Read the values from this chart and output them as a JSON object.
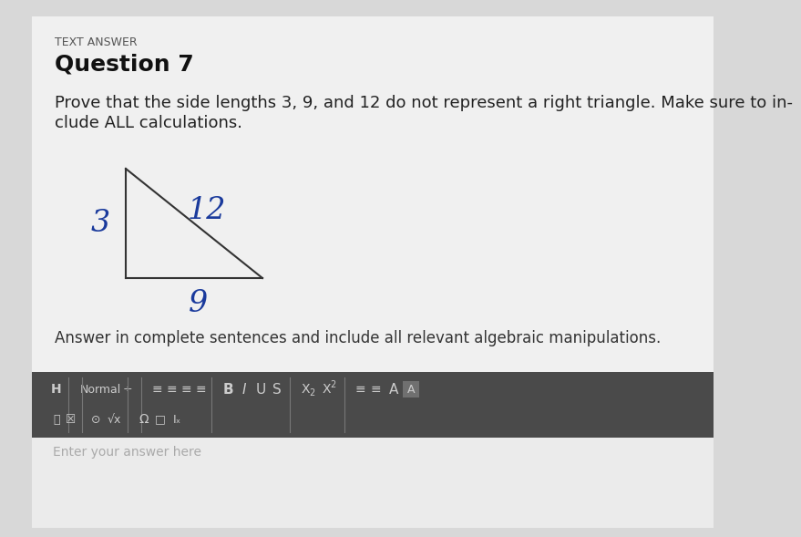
{
  "bg_color": "#d8d8d8",
  "panel_color": "#f0f0f0",
  "text_answer_label": "TEXT ANSWER",
  "question_title": "Question 7",
  "question_text_line1": "Prove that the side lengths 3, 9, and 12 do not represent a right triangle. Make sure to in-",
  "question_text_line2": "clude ALL calculations.",
  "side_labels": [
    "3",
    "9",
    "12"
  ],
  "answer_instruction": "Answer in complete sentences and include all relevant algebraic manipulations.",
  "toolbar_bg": "#4a4a4a",
  "toolbar_text_color": "#cccccc",
  "enter_answer_text": "Enter your answer here",
  "triangle_color": "#333333",
  "label_color": "#1a3a9c",
  "title_fontsize": 18,
  "text_fontsize": 13,
  "small_text_fontsize": 9,
  "instruction_fontsize": 12
}
